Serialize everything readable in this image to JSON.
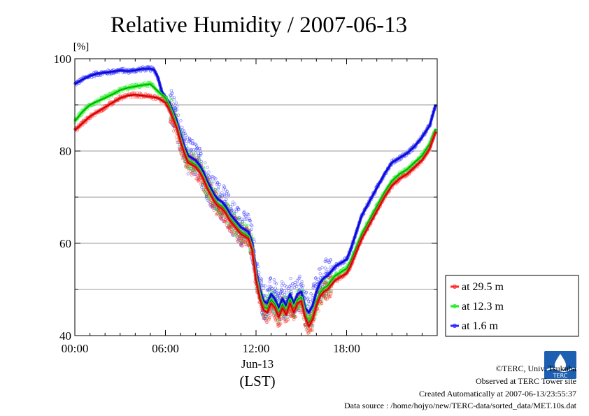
{
  "chart_data": {
    "type": "line",
    "title": "Relative Humidity / 2007-06-13",
    "ylabel": "[%]",
    "xlabel": "Jun-13",
    "xlabel2": "(LST)",
    "ylim": [
      40,
      100
    ],
    "xlim": [
      0,
      24
    ],
    "yticks": [
      "40",
      "60",
      "80",
      "100"
    ],
    "xtick_values": [
      0,
      6,
      12,
      18
    ],
    "xticks": [
      "00:00",
      "06:00",
      "12:00",
      "18:00"
    ],
    "grid": true,
    "legend_position": "right",
    "series": [
      {
        "name": "at 29.5 m",
        "color": "#ff2a2a",
        "x": [
          0,
          0.5,
          1,
          1.5,
          2,
          2.5,
          3,
          3.5,
          4,
          4.5,
          5,
          5.5,
          6,
          6.25,
          6.5,
          6.75,
          7,
          7.25,
          7.5,
          7.75,
          8,
          8.25,
          8.5,
          8.75,
          9,
          9.25,
          9.5,
          9.75,
          10,
          10.25,
          10.5,
          10.75,
          11,
          11.25,
          11.5,
          11.75,
          12,
          12.25,
          12.5,
          12.75,
          13,
          13.25,
          13.5,
          13.75,
          14,
          14.25,
          14.5,
          14.75,
          15,
          15.25,
          15.5,
          15.75,
          16,
          16.25,
          16.5,
          16.75,
          17,
          17.25,
          17.5,
          17.75,
          18,
          18.25,
          18.5,
          18.75,
          19,
          19.5,
          20,
          20.5,
          21,
          21.5,
          22,
          22.5,
          23,
          23.5,
          23.9
        ],
        "values": [
          84.5,
          86,
          87.5,
          88.5,
          89.5,
          90.5,
          91.5,
          92,
          92.2,
          92,
          91.8,
          91.5,
          90.5,
          89,
          87,
          85,
          82,
          79.5,
          77.5,
          77,
          76.5,
          75.5,
          74,
          72,
          70.5,
          69,
          68,
          67.5,
          66.5,
          65,
          64,
          63,
          62,
          61.5,
          61,
          58.5,
          52,
          48,
          45.5,
          45,
          47,
          46,
          44,
          46,
          44.5,
          47,
          45,
          47,
          47.5,
          44,
          42,
          43.5,
          46.5,
          48.5,
          49.5,
          50,
          51,
          52,
          52.5,
          53,
          53.5,
          55,
          57,
          59,
          61,
          64,
          67,
          70,
          72.5,
          74,
          75,
          76.5,
          78,
          80.5,
          84.2
        ]
      },
      {
        "name": "at 12.3 m",
        "color": "#22ee22",
        "x": [
          0,
          0.5,
          1,
          1.5,
          2,
          2.5,
          3,
          3.5,
          4,
          4.5,
          5,
          5.5,
          6,
          6.25,
          6.5,
          6.75,
          7,
          7.25,
          7.5,
          7.75,
          8,
          8.25,
          8.5,
          8.75,
          9,
          9.25,
          9.5,
          9.75,
          10,
          10.25,
          10.5,
          10.75,
          11,
          11.25,
          11.5,
          11.75,
          12,
          12.25,
          12.5,
          12.75,
          13,
          13.25,
          13.5,
          13.75,
          14,
          14.25,
          14.5,
          14.75,
          15,
          15.25,
          15.5,
          15.75,
          16,
          16.25,
          16.5,
          16.75,
          17,
          17.25,
          17.5,
          17.75,
          18,
          18.25,
          18.5,
          18.75,
          19,
          19.5,
          20,
          20.5,
          21,
          21.5,
          22,
          22.5,
          23,
          23.5,
          23.9
        ],
        "values": [
          86.5,
          88.5,
          90,
          90.8,
          91.5,
          92.3,
          93.2,
          93.7,
          94,
          94.3,
          94.5,
          93,
          91.5,
          89.8,
          87.8,
          85.5,
          82.5,
          80,
          78,
          77.5,
          77,
          76,
          74.5,
          72.5,
          71,
          69.5,
          68.5,
          68,
          67,
          65.5,
          64.5,
          63.5,
          62.5,
          62,
          61.5,
          59,
          52.8,
          48.8,
          46.3,
          45.8,
          47.8,
          46.8,
          44.8,
          46.8,
          45.3,
          47.8,
          45.8,
          47.8,
          48.3,
          44.8,
          42.8,
          44.3,
          47.3,
          49.3,
          50.3,
          50.8,
          52,
          53,
          53.5,
          54,
          54.5,
          56,
          58,
          60,
          62,
          65,
          68,
          71,
          73.5,
          75,
          76,
          77.5,
          79,
          81.5,
          84.8
        ]
      },
      {
        "name": "at 1.6 m",
        "color": "#2a2aff",
        "x": [
          0,
          0.5,
          1,
          1.5,
          2,
          2.5,
          3,
          3.5,
          4,
          4.5,
          5,
          5.25,
          5.5,
          5.75,
          6,
          6.25,
          6.5,
          6.75,
          7,
          7.25,
          7.5,
          7.75,
          8,
          8.25,
          8.5,
          8.75,
          9,
          9.25,
          9.5,
          9.75,
          10,
          10.25,
          10.5,
          10.75,
          11,
          11.25,
          11.5,
          11.75,
          12,
          12.25,
          12.5,
          12.75,
          13,
          13.25,
          13.5,
          13.75,
          14,
          14.25,
          14.5,
          14.75,
          15,
          15.25,
          15.5,
          15.75,
          16,
          16.25,
          16.5,
          16.75,
          17,
          17.25,
          17.5,
          17.75,
          18,
          18.25,
          18.5,
          18.75,
          19,
          19.5,
          20,
          20.5,
          21,
          21.5,
          22,
          22.5,
          23,
          23.5,
          23.9
        ],
        "values": [
          94.5,
          95.5,
          96.3,
          96.8,
          97,
          97.2,
          97.5,
          97.3,
          97.5,
          97.8,
          97.8,
          97.6,
          96,
          93,
          91.5,
          90.5,
          88.5,
          86.5,
          83.5,
          81,
          79,
          78.5,
          78,
          77,
          75.5,
          73.5,
          72,
          70.5,
          69.5,
          69,
          68,
          66.5,
          65.5,
          64.5,
          63.5,
          63,
          62.5,
          60,
          54,
          50,
          47.5,
          47,
          49,
          48,
          46,
          48,
          46.5,
          49,
          47,
          49,
          49.5,
          46,
          45,
          46.5,
          49.5,
          51.5,
          52.5,
          53,
          54,
          55,
          55.5,
          56,
          56.5,
          58.5,
          61,
          63.5,
          66,
          69,
          72,
          75,
          77.5,
          78.5,
          79.5,
          81,
          83,
          85.5,
          90
        ]
      }
    ]
  },
  "credits": {
    "copyright": "©TERC, Univ. Tsukuba",
    "observed": "Observed at TERC Tower site",
    "created": "Created Automatically at 2007-06-13/23:55:37",
    "source": "Data source : /home/hojyo/new/TERC-data/sorted_data/MET.10s.dat",
    "logo_text": "TERC"
  }
}
